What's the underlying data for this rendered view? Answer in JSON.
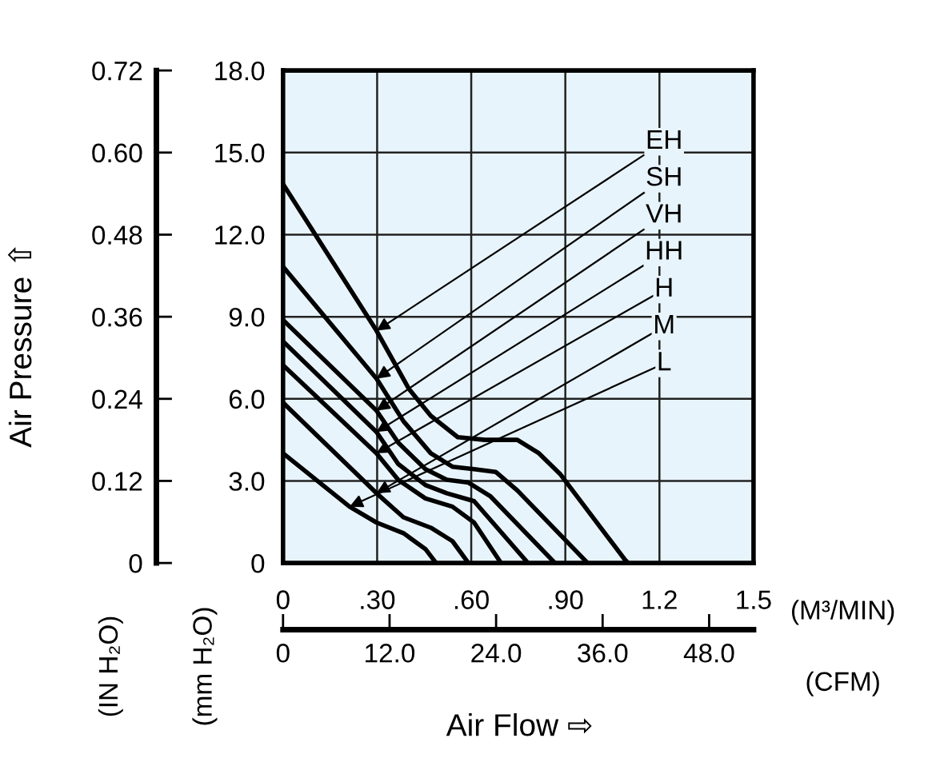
{
  "chart_data": {
    "type": "line",
    "xlabel": "(M³/MIN)",
    "ylabel": "(mm H₂O)",
    "y2label": "(IN H₂O)",
    "x2label": "(CFM)",
    "annotations": [
      "Air Pressure ⇧",
      "Air Flow ⇨"
    ],
    "xlim": [
      0,
      1.5
    ],
    "xticks": [
      0,
      {
        "value": 0.3,
        "label": ".30"
      },
      {
        "value": 0.6,
        "label": ".60"
      },
      {
        "value": 0.9,
        "label": ".90"
      },
      1.2,
      1.5
    ],
    "ylim": [
      0,
      18
    ],
    "yticks": [
      0,
      {
        "value": 3,
        "label": "3.0"
      },
      {
        "value": 6,
        "label": "6.0"
      },
      {
        "value": 9,
        "label": "9.0"
      },
      {
        "value": 12,
        "label": "12.0"
      },
      {
        "value": 15,
        "label": "15.0"
      },
      {
        "value": 18,
        "label": "18.0"
      }
    ],
    "y2lim": [
      0,
      0.72
    ],
    "y2ticks": [
      0,
      0.12,
      0.24,
      0.36,
      0.48,
      {
        "value": 0.6,
        "label": "0.60"
      },
      0.72
    ],
    "x2lim": [
      0,
      53
    ],
    "x2ticks": [
      0,
      {
        "value": 12,
        "label": "12.0"
      },
      {
        "value": 24,
        "label": "24.0"
      },
      {
        "value": 36,
        "label": "36.0"
      },
      {
        "value": 48,
        "label": "48.0"
      }
    ],
    "grid": true,
    "legend": false,
    "marker": "none",
    "line_style": "solid",
    "series": [
      {
        "name": "EH",
        "color": "#000000",
        "x": [
          0,
          0.298,
          0.402,
          0.471,
          0.557,
          0.643,
          0.747,
          0.816,
          0.885,
          1.09,
          1.1
        ],
        "values": [
          13.85,
          8.49,
          6.35,
          5.38,
          4.6,
          4.5,
          4.5,
          4.01,
          3.23,
          0.12,
          0
        ]
      },
      {
        "name": "SH",
        "color": "#000000",
        "x": [
          0,
          0.298,
          0.384,
          0.471,
          0.54,
          0.609,
          0.678,
          0.747,
          0.971
        ],
        "values": [
          10.83,
          6.74,
          5.18,
          4.01,
          3.52,
          3.43,
          3.33,
          2.65,
          0
        ]
      },
      {
        "name": "VH",
        "color": "#000000",
        "x": [
          0,
          0.298,
          0.367,
          0.454,
          0.522,
          0.591,
          0.66,
          0.867
        ],
        "values": [
          8.88,
          5.57,
          4.4,
          3.43,
          3.04,
          2.94,
          2.45,
          0
        ]
      },
      {
        "name": "HH",
        "color": "#000000",
        "x": [
          0,
          0.298,
          0.367,
          0.454,
          0.522,
          0.609,
          0.781
        ],
        "values": [
          8.1,
          4.79,
          3.62,
          2.85,
          2.55,
          2.26,
          0
        ]
      },
      {
        "name": "H",
        "color": "#000000",
        "x": [
          0,
          0.298,
          0.367,
          0.454,
          0.54,
          0.609,
          0.695
        ],
        "values": [
          7.23,
          4.01,
          3.04,
          2.36,
          2.06,
          1.48,
          0
        ]
      },
      {
        "name": "M",
        "color": "#000000",
        "x": [
          0,
          0.298,
          0.384,
          0.471,
          0.54,
          0.591
        ],
        "values": [
          5.86,
          2.55,
          1.67,
          1.29,
          0.8,
          0
        ]
      },
      {
        "name": "L",
        "color": "#000000",
        "x": [
          0,
          0.212,
          0.298,
          0.384,
          0.454,
          0.488
        ],
        "values": [
          4.01,
          2.06,
          1.48,
          1.09,
          0.51,
          0
        ]
      }
    ]
  }
}
